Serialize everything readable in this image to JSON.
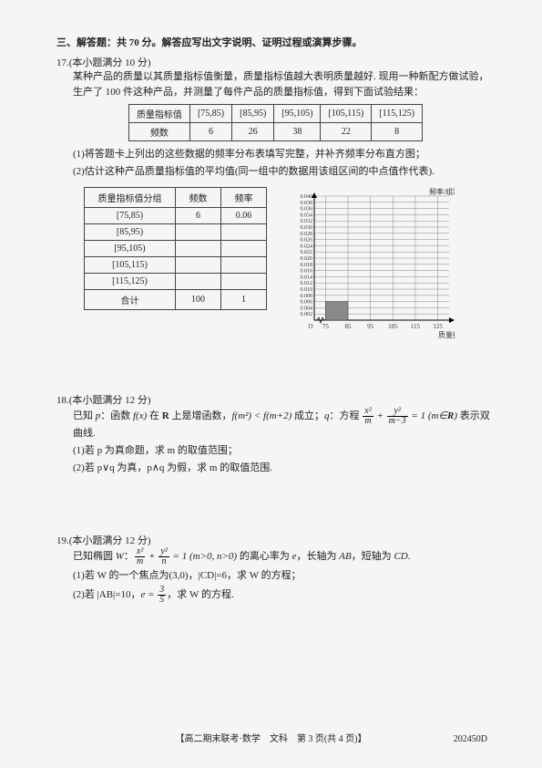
{
  "section": {
    "header": "三、解答题：共 70 分。解答应写出文字说明、证明过程或演算步骤。"
  },
  "q17": {
    "header": "17.(本小题满分 10 分)",
    "p1": "某种产品的质量以其质量指标值衡量，质量指标值越大表明质量越好. 现用一种新配方做试验，生产了 100 件这种产品，并测量了每件产品的质量指标值，得到下面试验结果：",
    "table1": {
      "head": [
        "质量指标值",
        "[75,85)",
        "[85,95)",
        "[95,105)",
        "[105,115)",
        "[115,125)"
      ],
      "row_label": "频数",
      "row": [
        "6",
        "26",
        "38",
        "22",
        "8"
      ]
    },
    "sub1": "(1)将答题卡上列出的这些数据的频率分布表填写完整，并补齐频率分布直方图；",
    "sub2": "(2)估计这种产品质量指标值的平均值(同一组中的数据用该组区间的中点值作代表).",
    "table2": {
      "head": [
        "质量指标值分组",
        "频数",
        "频率"
      ],
      "rows": [
        [
          "[75,85)",
          "6",
          "0.06"
        ],
        [
          "[85,95)",
          "",
          ""
        ],
        [
          "[95,105)",
          "",
          ""
        ],
        [
          "[105,115)",
          "",
          ""
        ],
        [
          "[115,125)",
          "",
          ""
        ],
        [
          "合计",
          "100",
          "1"
        ]
      ]
    },
    "chart": {
      "type": "histogram",
      "y_label": "频率/组距",
      "x_label": "质量指标值",
      "y_ticks": [
        "0.002",
        "0.004",
        "0.006",
        "0.008",
        "0.010",
        "0.012",
        "0.014",
        "0.016",
        "0.018",
        "0.020",
        "0.022",
        "0.024",
        "0.026",
        "0.028",
        "0.030",
        "0.032",
        "0.034",
        "0.036",
        "0.038",
        "0.040"
      ],
      "x_ticks": [
        "0",
        "75",
        "85",
        "95",
        "105",
        "115",
        "125"
      ],
      "bars": [
        {
          "x0": 75,
          "x1": 85,
          "height": 0.006,
          "fill": "#8a8a8a"
        }
      ],
      "grid_color": "#888",
      "bg": "#fcfcfc",
      "line_width": 0.5
    }
  },
  "q18": {
    "header": "18.(本小题满分 12 分)",
    "p1_a": "已知 ",
    "p1_b": "p",
    "p1_c": "：函数 ",
    "p1_d": "f(x)",
    "p1_e": " 在 ",
    "p1_f": "R",
    "p1_g": " 上是增函数，",
    "p1_h": "f(m²) < f(m+2)",
    "p1_i": " 成立；",
    "p1_j": "q",
    "p1_k": "：方程 ",
    "p1_m": " 表示双曲线.",
    "frac_tex": "x²/m + y²/(m−3) = 1 (m∈R)",
    "sub1": "(1)若 p 为真命题，求 m 的取值范围；",
    "sub2": "(2)若 p∨q 为真，p∧q 为假，求 m 的取值范围."
  },
  "q19": {
    "header": "19.(本小题满分 12 分)",
    "p1_a": "已知椭圆 ",
    "p1_b": "W",
    "p1_c": "：",
    "frac_tex": "x²/m + y²/n = 1 (m>0, n>0)",
    "p1_d": " 的离心率为 ",
    "p1_e": "e",
    "p1_f": "，长轴为 ",
    "p1_g": "AB",
    "p1_h": "，短轴为 ",
    "p1_i": "CD",
    "p1_j": ".",
    "sub1": "(1)若 W 的一个焦点为(3,0)，|CD|=6，求 W 的方程；",
    "sub2_a": "(2)若 |AB|=10，",
    "sub2_b": "e = 3/5",
    "sub2_c": "，求 W 的方程."
  },
  "footer": {
    "center": "【高二期末联考·数学　文科　第 3 页(共 4 页)】",
    "id": "202450D"
  }
}
